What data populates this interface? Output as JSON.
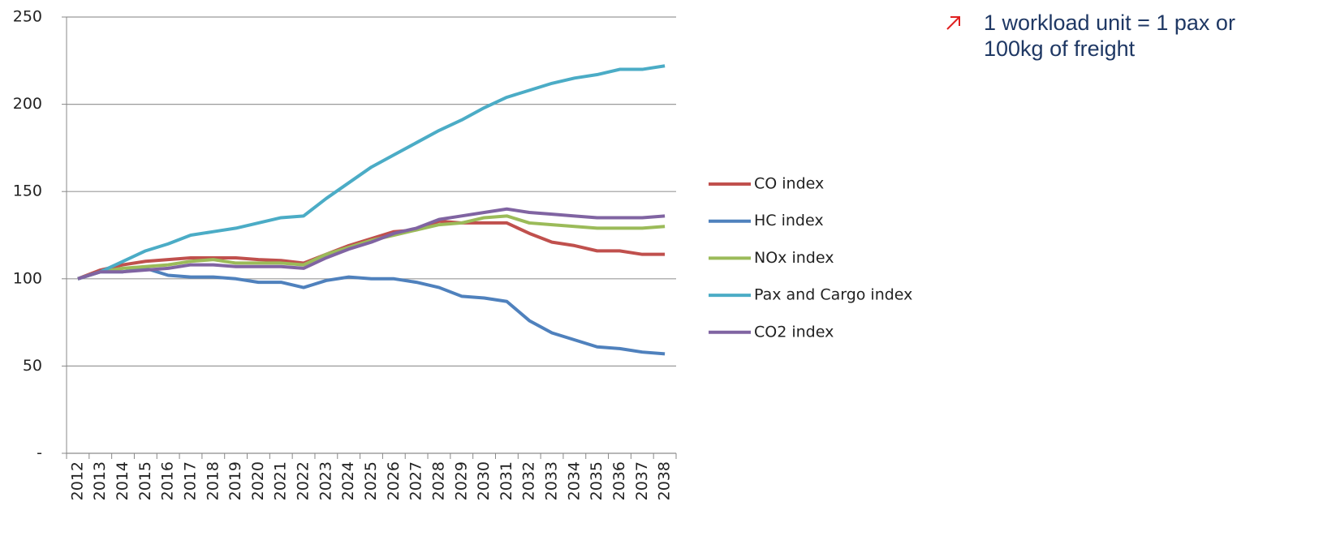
{
  "chart_data": {
    "type": "line",
    "annotation": "1 workload unit = 1 pax or 100kg of freight",
    "categories": [
      "2012",
      "2013",
      "2014",
      "2015",
      "2016",
      "2017",
      "2018",
      "2019",
      "2020",
      "2021",
      "2022",
      "2023",
      "2024",
      "2025",
      "2026",
      "2027",
      "2028",
      "2029",
      "2030",
      "2031",
      "2032",
      "2033",
      "2034",
      "2035",
      "2036",
      "2037",
      "2038"
    ],
    "series": [
      {
        "name": "CO index",
        "color": "#c0504d",
        "values": [
          100,
          105,
          108,
          110,
          111,
          112,
          112,
          112,
          111,
          110.5,
          109,
          114,
          119,
          123,
          127,
          128,
          133,
          132,
          132,
          132,
          126,
          121,
          119,
          116,
          116,
          114,
          114
        ]
      },
      {
        "name": "HC index",
        "color": "#4f81bd",
        "values": [
          100,
          104,
          104,
          106,
          102,
          101,
          101,
          100,
          98,
          98,
          95,
          99,
          101,
          100,
          100,
          98,
          95,
          90,
          89,
          87,
          76,
          69,
          65,
          61,
          60,
          58,
          57
        ]
      },
      {
        "name": "NOx index",
        "color": "#9bbb59",
        "values": [
          100,
          104,
          106,
          107,
          108,
          110,
          111,
          109,
          109,
          109,
          108,
          114,
          118,
          122,
          125,
          128,
          131,
          132,
          135,
          136,
          132,
          131,
          130,
          129,
          129,
          129,
          130
        ]
      },
      {
        "name": "Pax and Cargo index",
        "color": "#4bacc6",
        "values": [
          100,
          104,
          110,
          116,
          120,
          125,
          127,
          129,
          132,
          135,
          136,
          146,
          155,
          164,
          171,
          178,
          185,
          191,
          198,
          204,
          208,
          212,
          215,
          217,
          220,
          220,
          222
        ]
      },
      {
        "name": "CO2 index",
        "color": "#8064a2",
        "values": [
          100,
          104,
          104,
          105,
          106,
          108,
          108,
          107,
          107,
          107,
          106,
          112,
          117,
          121,
          126,
          129,
          134,
          136,
          138,
          140,
          138,
          137,
          136,
          135,
          135,
          135,
          136
        ]
      }
    ],
    "ylim": [
      0,
      250
    ],
    "yticks": [
      {
        "value": 0,
        "label": "-"
      },
      50,
      100,
      150,
      200,
      250
    ],
    "grid": true,
    "legend": "right"
  }
}
